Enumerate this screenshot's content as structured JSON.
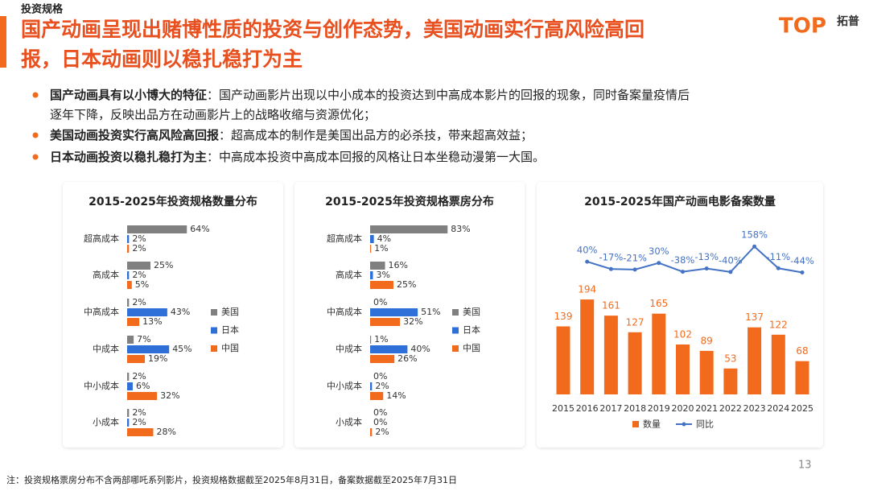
{
  "header": {
    "section": "投资规格",
    "title_lines": [
      "国产动画呈现出赌博性质的投资与创作态势，美国动画实行高风险高回",
      "报，日本动画则以稳扎稳打为主"
    ],
    "logo": "TOP",
    "logo_cn": "拓普"
  },
  "bullets": [
    {
      "bold": "国产动画具有以小博大的特征",
      "text": "：国产动画影片出现以中小成本的投资达到中高成本影片的回报的现象，同时备案量疫情后",
      "text2": "逐年下降，反映出品方在动画影片上的战略收缩与资源优化；"
    },
    {
      "bold": "美国动画投资实行高风险高回报",
      "text": "：超高成本的制作是美国出品方的必杀技，带来超高效益；"
    },
    {
      "bold": "日本动画投资以稳扎稳打为主",
      "text": "：中高成本投资中高成本回报的风格让日本坐稳动漫第一大国。"
    }
  ],
  "chart_data": [
    {
      "type": "hbar",
      "title": "2015-2025年投资规格数量分布",
      "categories": [
        "超高成本",
        "高成本",
        "中高成本",
        "中成本",
        "中小成本",
        "小成本"
      ],
      "series": [
        {
          "name": "美国",
          "color": "#808080",
          "values": [
            64,
            25,
            2,
            7,
            2,
            2
          ],
          "value_labels": [
            "64%",
            "25%",
            "2%",
            "7%",
            "2%",
            "2%"
          ]
        },
        {
          "name": "日本",
          "color": "#2f6fd8",
          "values": [
            2,
            2,
            43,
            45,
            6,
            2
          ],
          "value_labels": [
            "2%",
            "2%",
            "43%",
            "45%",
            "6%",
            "2%"
          ]
        },
        {
          "name": "中国",
          "color": "#f26b1d",
          "values": [
            2,
            5,
            13,
            19,
            32,
            28
          ],
          "value_labels": [
            "2%",
            "5%",
            "13%",
            "19%",
            "32%",
            "28%"
          ]
        }
      ]
    },
    {
      "type": "hbar",
      "title": "2015-2025年投资规格票房分布",
      "categories": [
        "超高成本",
        "高成本",
        "中高成本",
        "中成本",
        "中小成本",
        "小成本"
      ],
      "series": [
        {
          "name": "美国",
          "color": "#808080",
          "values": [
            83,
            16,
            0,
            1,
            0,
            0
          ],
          "value_labels": [
            "83%",
            "16%",
            "0%",
            "1%",
            "0%",
            "0%"
          ]
        },
        {
          "name": "日本",
          "color": "#2f6fd8",
          "values": [
            4,
            3,
            51,
            40,
            2,
            0
          ],
          "value_labels": [
            "4%",
            "3%",
            "51%",
            "40%",
            "2%",
            "0%"
          ]
        },
        {
          "name": "中国",
          "color": "#f26b1d",
          "values": [
            1,
            25,
            32,
            26,
            14,
            2
          ],
          "value_labels": [
            "1%",
            "25%",
            "32%",
            "26%",
            "14%",
            "2%"
          ]
        }
      ]
    },
    {
      "type": "bar_line",
      "title": "2015-2025年国产动画电影备案数量",
      "categories": [
        "2015",
        "2016",
        "2017",
        "2018",
        "2019",
        "2020",
        "2021",
        "2022",
        "2023",
        "2024",
        "2025"
      ],
      "series": [
        {
          "name": "数量",
          "color": "#f26b1d",
          "values": [
            139,
            194,
            161,
            127,
            165,
            102,
            89,
            53,
            137,
            122,
            68
          ]
        },
        {
          "name": "同比",
          "color": "#4472c4",
          "values": [
            null,
            40,
            -17,
            -21,
            30,
            -38,
            -13,
            -40,
            158,
            -11,
            -44
          ],
          "value_labels": [
            null,
            "40%",
            "-17%",
            "-21%",
            "30%",
            "-38%",
            "-13%",
            "-40%",
            "158%",
            "-11%",
            "-44%"
          ]
        }
      ]
    }
  ],
  "footnote": "注：投资规格票房分布不含两部哪吒系列影片，投资规格数据截至2025年8月31日，备案数据截至2025年7月31日",
  "page_number": "13"
}
